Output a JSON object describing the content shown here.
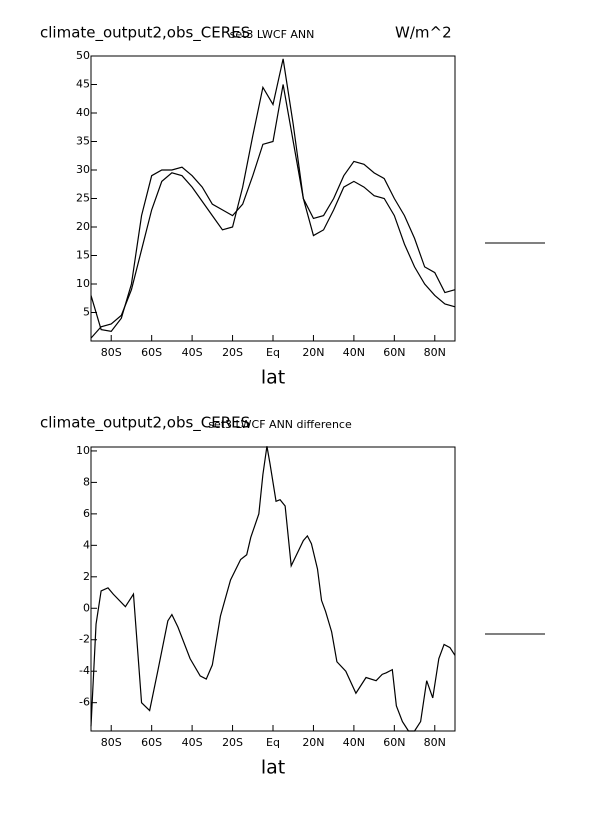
{
  "chart_data": [
    {
      "type": "line",
      "title": "climate_output2,obs_CERES",
      "subtitle": "set3 LWCF ANN",
      "units": "W/m^2",
      "x_label": "lat",
      "x": [
        -90,
        -85,
        -80,
        -75,
        -70,
        -65,
        -60,
        -55,
        -50,
        -45,
        -40,
        -35,
        -30,
        -25,
        -20,
        -15,
        -10,
        -5,
        0,
        5,
        10,
        15,
        20,
        25,
        30,
        35,
        40,
        45,
        50,
        55,
        60,
        65,
        70,
        75,
        80,
        85,
        90
      ],
      "series": [
        {
          "color": "#000000",
          "values": [
            0.5,
            2.5,
            3,
            4.5,
            9,
            16,
            23,
            28,
            29.5,
            29,
            27,
            24.5,
            22,
            19.5,
            20,
            27,
            36,
            44.5,
            41.5,
            49.5,
            38,
            25,
            18.5,
            19.5,
            23,
            27,
            28,
            27,
            25.5,
            25,
            22,
            17,
            13,
            10,
            8,
            6.5,
            6
          ]
        },
        {
          "color": "#000000",
          "values": [
            8,
            2,
            1.7,
            4,
            10,
            22,
            29,
            30,
            30,
            30.5,
            29,
            27,
            24,
            23,
            22,
            24,
            29,
            34.5,
            35,
            45,
            35,
            25,
            21.5,
            22,
            25,
            29,
            31.5,
            31,
            29.5,
            28.5,
            25,
            22,
            18,
            13,
            12,
            8.5,
            9
          ]
        }
      ],
      "xlim": [
        -90,
        90
      ],
      "ylim": [
        0,
        50
      ],
      "xticks": [
        {
          "value": -80,
          "label": "80S"
        },
        {
          "value": -60,
          "label": "60S"
        },
        {
          "value": -40,
          "label": "40S"
        },
        {
          "value": -20,
          "label": "20S"
        },
        {
          "value": 0,
          "label": "Eq"
        },
        {
          "value": 20,
          "label": "20N"
        },
        {
          "value": 40,
          "label": "40N"
        },
        {
          "value": 60,
          "label": "60N"
        },
        {
          "value": 80,
          "label": "80N"
        }
      ],
      "yticks": [
        5,
        10,
        15,
        20,
        25,
        30,
        35,
        40,
        45,
        50
      ]
    },
    {
      "type": "line",
      "title": "climate_output2,obs_CERES",
      "subtitle": "set3 LWCF ANN difference",
      "x_label": "lat",
      "x": [
        -90,
        -87.5,
        -85,
        -81.6,
        -79,
        -73,
        -69,
        -65,
        -61,
        -57,
        -52,
        -50,
        -47,
        -41,
        -36,
        -33,
        -30,
        -26,
        -21,
        -16,
        -13,
        -11,
        -7,
        -5,
        -3,
        -1.5,
        1.5,
        3.5,
        6,
        9,
        12,
        15,
        17,
        19,
        22,
        24,
        26,
        29,
        31.6,
        36,
        41,
        46,
        51,
        54,
        56,
        59,
        61,
        64,
        67,
        70,
        73,
        76,
        79,
        82,
        84.6,
        87.5,
        90
      ],
      "series": [
        {
          "color": "#000000",
          "values": [
            -7.5,
            -1,
            1.1,
            1.3,
            0.9,
            0.1,
            0.9,
            -6,
            -6.5,
            -4,
            -0.8,
            -0.4,
            -1.2,
            -3.2,
            -4.3,
            -4.5,
            -3.6,
            -0.5,
            1.8,
            3.1,
            3.4,
            4.5,
            6,
            8.5,
            10.3,
            9.2,
            6.8,
            6.9,
            6.5,
            2.7,
            3.5,
            4.3,
            4.6,
            4.1,
            2.5,
            0.5,
            -0.2,
            -1.5,
            -3.4,
            -4,
            -5.4,
            -4.4,
            -4.6,
            -4.2,
            -4.1,
            -3.9,
            -6.2,
            -7.2,
            -7.8,
            -7.8,
            -7.2,
            -4.6,
            -5.7,
            -3.2,
            -2.3,
            -2.5,
            -3
          ]
        }
      ],
      "xlim": [
        -90,
        90
      ],
      "ylim": [
        -7.8,
        10.25
      ],
      "xticks": [
        {
          "value": -80,
          "label": "80S"
        },
        {
          "value": -60,
          "label": "60S"
        },
        {
          "value": -40,
          "label": "40S"
        },
        {
          "value": -20,
          "label": "20S"
        },
        {
          "value": 0,
          "label": "Eq"
        },
        {
          "value": 20,
          "label": "20N"
        },
        {
          "value": 40,
          "label": "40N"
        },
        {
          "value": 60,
          "label": "60N"
        },
        {
          "value": 80,
          "label": "80N"
        }
      ],
      "yticks": [
        -6,
        -4,
        -2,
        0,
        2,
        4,
        6,
        8,
        10
      ]
    }
  ]
}
